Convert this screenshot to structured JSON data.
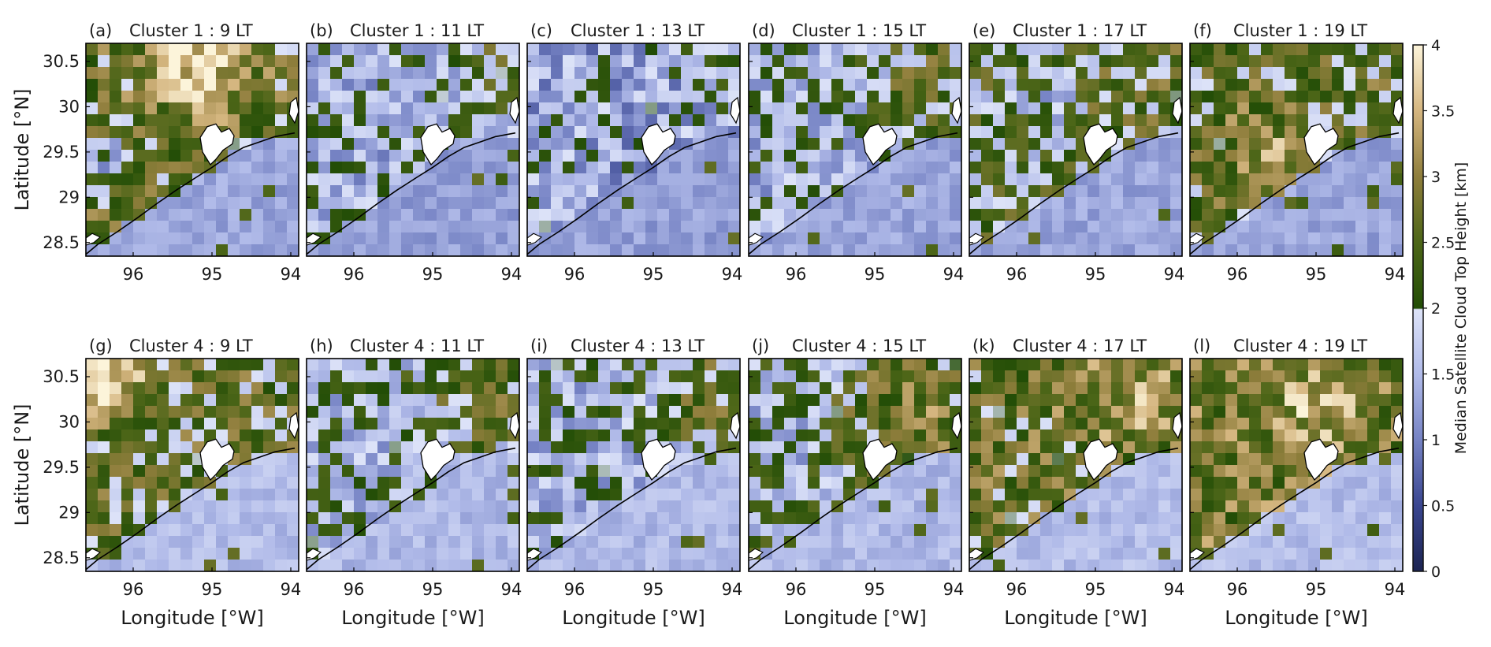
{
  "chart_data": {
    "type": "heatmap",
    "grid": {
      "rows": 2,
      "cols": 6
    },
    "x_axis": {
      "label": "Longitude [°W]",
      "range": [
        96.6,
        93.9
      ],
      "ticks": [
        96,
        95,
        94
      ],
      "tick_labels": [
        "96",
        "95",
        "94"
      ]
    },
    "y_axis": {
      "label": "Latitude [°N]",
      "range": [
        28.35,
        30.7
      ],
      "ticks": [
        28.5,
        29,
        29.5,
        30,
        30.5
      ],
      "tick_labels": [
        "28.5",
        "29",
        "29.5",
        "30",
        "30.5"
      ]
    },
    "colorbar": {
      "label": "Median Satellite Cloud Top Height [km]",
      "range": [
        0,
        4
      ],
      "ticks": [
        0,
        0.5,
        1,
        1.5,
        2,
        2.5,
        3,
        3.5,
        4
      ],
      "tick_labels": [
        "0",
        "0.5",
        "1",
        "1.5",
        "2",
        "2.5",
        "3",
        "3.5",
        "4"
      ],
      "colormap": [
        {
          "v": 0,
          "color": "#1c2452"
        },
        {
          "v": 0.5,
          "color": "#3a4690"
        },
        {
          "v": 1,
          "color": "#7683c4"
        },
        {
          "v": 1.5,
          "color": "#b1bbe9"
        },
        {
          "v": 1.99,
          "color": "#dde3f8"
        },
        {
          "v": 2.0,
          "color": "#224d06"
        },
        {
          "v": 2.5,
          "color": "#4d6618"
        },
        {
          "v": 3,
          "color": "#8f7e3c"
        },
        {
          "v": 3.5,
          "color": "#d5b680"
        },
        {
          "v": 4,
          "color": "#fcf4da"
        }
      ]
    },
    "panels": [
      {
        "tag": "(a)",
        "title": "Cluster 1 : 9 LT",
        "seed": 11,
        "land": 2.55,
        "ocean": 1.3,
        "high": {
          "x": 95.2,
          "y": 30.5,
          "r": 0.55,
          "amp": 1.35
        },
        "clear": {
          "x": 96.3,
          "y": 29.4,
          "r": 0.35,
          "depth": 0.9
        }
      },
      {
        "tag": "(b)",
        "title": "Cluster 1 : 11 LT",
        "seed": 23,
        "land": 1.65,
        "ocean": 1.25,
        "high": {
          "x": 94.2,
          "y": 30.4,
          "r": 0.45,
          "amp": 0.75
        },
        "clear": null
      },
      {
        "tag": "(c)",
        "title": "Cluster 1 : 13 LT",
        "seed": 37,
        "land": 1.45,
        "ocean": 1.25,
        "high": {
          "x": 94.15,
          "y": 30.5,
          "r": 0.4,
          "amp": 0.9
        },
        "clear": null
      },
      {
        "tag": "(d)",
        "title": "Cluster 1 : 15 LT",
        "seed": 41,
        "land": 1.7,
        "ocean": 1.3,
        "high": {
          "x": 94.4,
          "y": 30.3,
          "r": 0.6,
          "amp": 0.75
        },
        "clear": null
      },
      {
        "tag": "(e)",
        "title": "Cluster 1 : 17 LT",
        "seed": 53,
        "land": 2.15,
        "ocean": 1.3,
        "high": {
          "x": 94.5,
          "y": 30.4,
          "r": 0.7,
          "amp": 0.35
        },
        "clear": {
          "x": 95.6,
          "y": 30.0,
          "r": 0.35,
          "depth": 0.8
        }
      },
      {
        "tag": "(f)",
        "title": "Cluster 1 : 19 LT",
        "seed": 67,
        "land": 2.45,
        "ocean": 1.3,
        "high": {
          "x": 95.7,
          "y": 29.5,
          "r": 0.45,
          "amp": 0.8
        },
        "clear": null
      },
      {
        "tag": "(g)",
        "title": "Cluster 4 : 9 LT",
        "seed": 71,
        "land": 2.4,
        "ocean": 1.55,
        "high": {
          "x": 96.3,
          "y": 30.4,
          "r": 0.45,
          "amp": 1.4
        },
        "clear": null
      },
      {
        "tag": "(h)",
        "title": "Cluster 4 : 11 LT",
        "seed": 83,
        "land": 1.75,
        "ocean": 1.5,
        "high": {
          "x": 94.4,
          "y": 30.4,
          "r": 0.65,
          "amp": 0.95
        },
        "clear": null
      },
      {
        "tag": "(i)",
        "title": "Cluster 4 : 13 LT",
        "seed": 97,
        "land": 1.7,
        "ocean": 1.5,
        "high": {
          "x": 94.3,
          "y": 30.3,
          "r": 0.6,
          "amp": 0.9
        },
        "clear": null
      },
      {
        "tag": "(j)",
        "title": "Cluster 4 : 15 LT",
        "seed": 101,
        "land": 1.95,
        "ocean": 1.5,
        "high": {
          "x": 94.5,
          "y": 30.1,
          "r": 0.8,
          "amp": 0.9
        },
        "clear": {
          "x": 96.2,
          "y": 29.8,
          "r": 0.45,
          "depth": 0.6
        }
      },
      {
        "tag": "(k)",
        "title": "Cluster 4 : 17 LT",
        "seed": 113,
        "land": 2.55,
        "ocean": 1.55,
        "high": {
          "x": 94.6,
          "y": 30.3,
          "r": 0.7,
          "amp": 0.7
        },
        "clear": null
      },
      {
        "tag": "(l)",
        "title": "Cluster 4 : 19 LT",
        "seed": 127,
        "land": 2.75,
        "ocean": 1.55,
        "high": {
          "x": 95.0,
          "y": 30.2,
          "r": 0.6,
          "amp": 0.6
        },
        "clear": null
      }
    ]
  }
}
